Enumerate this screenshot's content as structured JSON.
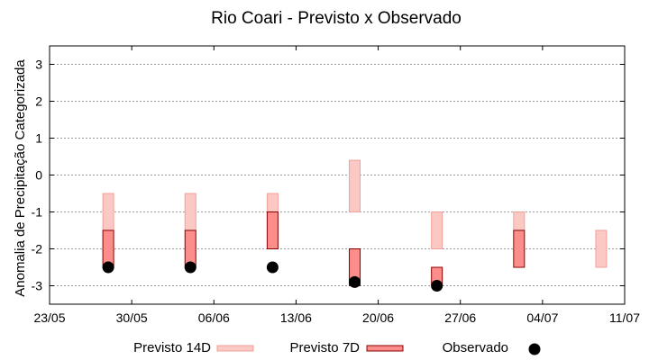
{
  "chart_data": {
    "type": "range-bar",
    "title": "Rio Coari - Previsto x Observado",
    "ylabel": "Anomalia de Precipitação Categorizada",
    "xlabel": "",
    "ylim": [
      -3.5,
      3.5
    ],
    "yticks": [
      -3,
      -2,
      -1,
      0,
      1,
      2,
      3
    ],
    "x_ticks": [
      "23/05",
      "30/05",
      "06/06",
      "13/06",
      "20/06",
      "27/06",
      "04/07",
      "11/07"
    ],
    "grid": true,
    "legend_position": "bottom",
    "colors": {
      "previsto14d_fill": "#fcc8c4",
      "previsto14d_stroke": "#f2a09a",
      "previsto7d_fill": "#fb8e8a",
      "previsto7d_stroke": "#8b0000",
      "observado": "#000000",
      "grid": "#999999"
    },
    "series": [
      {
        "name": "Previsto 14D",
        "kind": "range",
        "points": [
          {
            "date": "28/05",
            "low": -1.5,
            "high": -0.5
          },
          {
            "date": "04/06",
            "low": -1.5,
            "high": -0.5
          },
          {
            "date": "11/06",
            "low": -1.0,
            "high": -0.5
          },
          {
            "date": "18/06",
            "low": -1.0,
            "high": 0.4
          },
          {
            "date": "25/06",
            "low": -2.0,
            "high": -1.0
          },
          {
            "date": "02/07",
            "low": -1.5,
            "high": -1.0
          },
          {
            "date": "09/07",
            "low": -2.5,
            "high": -1.5
          }
        ]
      },
      {
        "name": "Previsto 7D",
        "kind": "range",
        "points": [
          {
            "date": "28/05",
            "low": -2.5,
            "high": -1.5
          },
          {
            "date": "04/06",
            "low": -2.5,
            "high": -1.5
          },
          {
            "date": "11/06",
            "low": -2.0,
            "high": -1.0
          },
          {
            "date": "18/06",
            "low": -3.0,
            "high": -2.0
          },
          {
            "date": "25/06",
            "low": -3.0,
            "high": -2.5
          },
          {
            "date": "02/07",
            "low": -2.5,
            "high": -1.5
          }
        ]
      },
      {
        "name": "Observado",
        "kind": "point",
        "points": [
          {
            "date": "28/05",
            "value": -2.5
          },
          {
            "date": "04/06",
            "value": -2.5
          },
          {
            "date": "11/06",
            "value": -2.5
          },
          {
            "date": "18/06",
            "value": -2.9
          },
          {
            "date": "25/06",
            "value": -3.0
          }
        ]
      }
    ]
  }
}
